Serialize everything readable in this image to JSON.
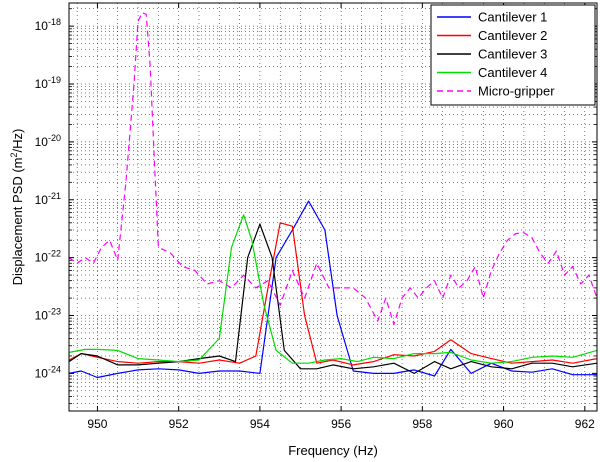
{
  "chart_data": {
    "type": "line",
    "xlabel": "Frequency (Hz)",
    "ylabel_main": "Displacement PSD (m",
    "ylabel_sup": "2",
    "ylabel_tail": "/Hz)",
    "xlim": [
      949.3,
      962.3
    ],
    "ylim_exp": [
      -24.65,
      -17.6
    ],
    "y_scale": "log",
    "grid": true,
    "legend_position": "top-right",
    "x_ticks": [
      950,
      952,
      954,
      956,
      958,
      960,
      962
    ],
    "y_ticks_exp": [
      -24,
      -23,
      -22,
      -21,
      -20,
      -19,
      -18
    ],
    "series": [
      {
        "name": "Cantilever 1",
        "color": "#0000ff",
        "style": "solid",
        "x": [
          949.3,
          949.6,
          950.0,
          950.5,
          951.0,
          951.5,
          952.0,
          952.5,
          953.0,
          953.5,
          954.0,
          954.4,
          954.8,
          955.2,
          955.6,
          955.9,
          956.3,
          956.8,
          957.3,
          957.8,
          958.3,
          958.7,
          959.2,
          959.7,
          960.2,
          960.7,
          961.2,
          961.7,
          962.3
        ],
        "y": [
          1e-24,
          1.1e-24,
          8.5e-25,
          1e-24,
          1.15e-24,
          1.2e-24,
          1.15e-24,
          1e-24,
          1.1e-24,
          1.1e-24,
          1e-24,
          1e-22,
          3e-22,
          9.5e-22,
          3e-22,
          1e-23,
          1.1e-24,
          1e-24,
          1e-24,
          1.15e-24,
          9e-25,
          2.6e-24,
          1e-24,
          1.5e-24,
          1.1e-24,
          1.05e-24,
          1.2e-24,
          9.5e-25,
          9.5e-25
        ]
      },
      {
        "name": "Cantilever 2",
        "color": "#ff0000",
        "style": "solid",
        "x": [
          949.3,
          949.6,
          950.0,
          950.5,
          951.0,
          951.5,
          952.0,
          952.5,
          953.0,
          953.5,
          953.9,
          954.2,
          954.5,
          954.8,
          955.1,
          955.4,
          955.8,
          956.3,
          956.8,
          957.3,
          957.8,
          958.3,
          958.7,
          959.2,
          959.7,
          960.2,
          960.7,
          961.2,
          961.7,
          962.3
        ],
        "y": [
          1.7e-24,
          2.2e-24,
          1.9e-24,
          1.6e-24,
          1.5e-24,
          1.6e-24,
          1.6e-24,
          1.5e-24,
          1.7e-24,
          1.5e-24,
          2e-24,
          3e-23,
          4e-22,
          3.5e-22,
          1e-23,
          1.5e-24,
          1.7e-24,
          1.4e-24,
          1.6e-24,
          2.1e-24,
          2e-24,
          2.4e-24,
          3.8e-24,
          2.2e-24,
          1.8e-24,
          1.5e-24,
          1.6e-24,
          1.7e-24,
          1.5e-24,
          1.8e-24
        ]
      },
      {
        "name": "Cantilever 3",
        "color": "#000000",
        "style": "solid",
        "x": [
          949.3,
          949.6,
          950.0,
          950.5,
          951.0,
          951.5,
          952.0,
          952.5,
          953.0,
          953.4,
          953.7,
          954.0,
          954.3,
          954.6,
          955.0,
          955.4,
          955.8,
          956.3,
          956.8,
          957.3,
          957.8,
          958.3,
          958.7,
          959.2,
          959.7,
          960.2,
          960.7,
          961.2,
          961.7,
          962.3
        ],
        "y": [
          1.6e-24,
          2.2e-24,
          2e-24,
          1.4e-24,
          1.4e-24,
          1.5e-24,
          1.6e-24,
          1.8e-24,
          2e-24,
          1.6e-24,
          1e-22,
          3.8e-22,
          1e-22,
          2.5e-24,
          1.2e-24,
          1.2e-24,
          1.4e-24,
          1.2e-24,
          1.3e-24,
          1.5e-24,
          1e-24,
          1.6e-24,
          1.2e-24,
          1.6e-24,
          1.3e-24,
          1.2e-24,
          1.5e-24,
          1.5e-24,
          1.3e-24,
          1.5e-24
        ]
      },
      {
        "name": "Cantilever 4",
        "color": "#00dd00",
        "style": "solid",
        "x": [
          949.3,
          949.7,
          950.0,
          950.5,
          951.0,
          951.5,
          952.0,
          952.5,
          953.0,
          953.3,
          953.6,
          953.8,
          954.1,
          954.4,
          954.8,
          955.2,
          955.6,
          956.0,
          956.4,
          956.8,
          957.3,
          957.8,
          958.3,
          958.7,
          959.2,
          959.7,
          960.2,
          960.7,
          961.2,
          961.7,
          962.3
        ],
        "y": [
          2.3e-24,
          2.6e-24,
          2.6e-24,
          2.5e-24,
          1.8e-24,
          1.7e-24,
          1.6e-24,
          1.7e-24,
          4e-24,
          1.5e-22,
          5.5e-22,
          2e-22,
          1.5e-23,
          2.5e-24,
          1.5e-24,
          1.5e-24,
          1.7e-24,
          1.8e-24,
          1.6e-24,
          1.9e-24,
          1.8e-24,
          2.2e-24,
          2.2e-24,
          2.3e-24,
          1.7e-24,
          1.5e-24,
          1.6e-24,
          1.9e-24,
          2e-24,
          1.9e-24,
          2.5e-24
        ]
      },
      {
        "name": "Micro-gripper",
        "color": "#ff00ff",
        "style": "dashed",
        "x": [
          949.3,
          949.5,
          949.7,
          949.9,
          950.1,
          950.3,
          950.5,
          950.7,
          950.9,
          951.0,
          951.1,
          951.2,
          951.3,
          951.4,
          951.5,
          951.8,
          952.1,
          952.4,
          952.7,
          953.0,
          953.3,
          953.6,
          953.9,
          954.2,
          954.5,
          954.8,
          955.1,
          955.4,
          955.7,
          956.0,
          956.3,
          956.6,
          956.9,
          957.1,
          957.3,
          957.5,
          957.7,
          957.9,
          958.1,
          958.3,
          958.5,
          958.7,
          958.9,
          959.1,
          959.3,
          959.5,
          959.7,
          959.9,
          960.1,
          960.3,
          960.5,
          960.7,
          960.9,
          961.1,
          961.3,
          961.5,
          961.7,
          961.9,
          962.1,
          962.3
        ],
        "y": [
          1e-22,
          8e-23,
          1e-22,
          8e-23,
          1.5e-22,
          2e-22,
          9e-23,
          2e-21,
          1e-19,
          1.2e-18,
          1.7e-18,
          1.6e-18,
          2e-19,
          5e-21,
          1.5e-22,
          1.2e-22,
          7e-23,
          6e-23,
          3.5e-23,
          4e-23,
          3e-23,
          5e-23,
          3e-23,
          4e-23,
          1.5e-23,
          6e-23,
          2e-23,
          8e-23,
          3e-23,
          3e-23,
          3e-23,
          2e-23,
          8e-24,
          2e-23,
          7e-24,
          2e-23,
          3e-23,
          2e-23,
          3e-23,
          4e-23,
          2e-23,
          5e-23,
          3e-23,
          4e-23,
          7e-23,
          2e-23,
          6e-23,
          1.2e-22,
          2e-22,
          2.6e-22,
          2.7e-22,
          2.2e-22,
          1.2e-22,
          8e-23,
          1.3e-22,
          5e-23,
          7e-23,
          3.5e-23,
          5e-23,
          2e-23
        ]
      }
    ]
  }
}
